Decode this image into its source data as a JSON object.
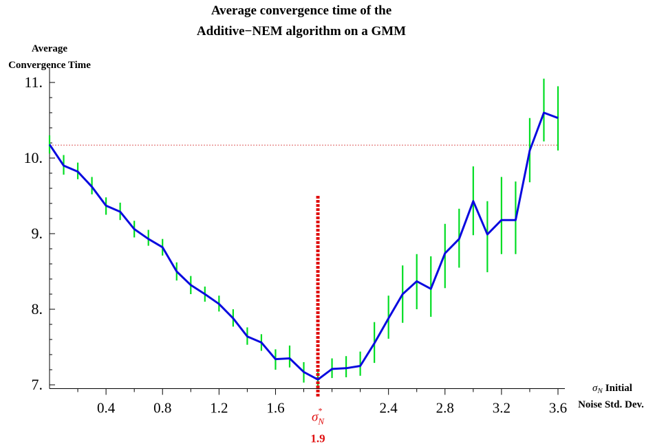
{
  "chart_data": {
    "type": "line",
    "title_line1": "Average convergence time of the",
    "title_line2": "Additive−NEM algorithm on a GMM",
    "ylabel_line1": "Average",
    "ylabel_line2": "Convergence Time",
    "xlabel_symbol": "σ",
    "xlabel_subscript": "N",
    "xlabel_line1": "Initial",
    "xlabel_line2": "Noise Std. Dev.",
    "xlim": [
      0.0,
      3.6
    ],
    "ylim": [
      6.95,
      11.2
    ],
    "x_ticks": [
      0.4,
      0.8,
      1.2,
      1.6,
      2.4,
      2.8,
      3.2,
      3.6
    ],
    "x_tick_labels": [
      "0.4",
      "0.8",
      "1.2",
      "1.6",
      "2.4",
      "2.8",
      "3.2",
      "3.6"
    ],
    "y_ticks": [
      7,
      8,
      9,
      10,
      11
    ],
    "y_tick_labels": [
      "7.",
      "8.",
      "9.",
      "10.",
      "11."
    ],
    "reference_line_y": 10.17,
    "optimum": {
      "x": 1.9,
      "y_top": 9.5,
      "symbol": "σ",
      "subscript": "N",
      "superscript": "*",
      "value_label": "1.9"
    },
    "colors": {
      "line": "#0a0adf",
      "error_bars": "#00dd22",
      "optimum_marker": "#e01010",
      "reference_line": "#e89090",
      "axis": "#000000"
    },
    "series": [
      {
        "x": [
          0.0,
          0.1,
          0.2,
          0.3,
          0.4,
          0.5,
          0.6,
          0.7,
          0.8,
          0.9,
          1.0,
          1.1,
          1.2,
          1.3,
          1.4,
          1.5,
          1.6,
          1.7,
          1.8,
          1.9,
          2.0,
          2.1,
          2.2,
          2.3,
          2.4,
          2.5,
          2.6,
          2.7,
          2.8,
          2.9,
          3.0,
          3.1,
          3.2,
          3.3,
          3.4,
          3.5,
          3.6
        ],
        "y": [
          10.18,
          9.9,
          9.82,
          9.62,
          9.37,
          9.29,
          9.06,
          8.93,
          8.82,
          8.5,
          8.32,
          8.2,
          8.07,
          7.88,
          7.64,
          7.56,
          7.34,
          7.35,
          7.17,
          7.07,
          7.21,
          7.22,
          7.25,
          7.55,
          7.88,
          8.2,
          8.37,
          8.27,
          8.74,
          8.93,
          9.43,
          8.99,
          9.18,
          9.18,
          10.1,
          10.6,
          10.53
        ],
        "err_low": [
          10.06,
          9.78,
          9.72,
          9.52,
          9.25,
          9.18,
          8.95,
          8.84,
          8.71,
          8.38,
          8.2,
          8.1,
          7.97,
          7.77,
          7.53,
          7.45,
          7.2,
          7.23,
          7.03,
          6.98,
          7.09,
          7.1,
          7.12,
          7.29,
          7.61,
          7.82,
          8.0,
          7.9,
          8.28,
          8.55,
          8.98,
          8.49,
          8.73,
          8.73,
          9.68,
          10.22,
          10.1
        ],
        "err_high": [
          10.3,
          10.04,
          9.94,
          9.75,
          9.48,
          9.41,
          9.17,
          9.05,
          8.93,
          8.62,
          8.44,
          8.3,
          8.18,
          8.0,
          7.76,
          7.67,
          7.47,
          7.52,
          7.3,
          7.17,
          7.35,
          7.38,
          7.44,
          7.83,
          8.18,
          8.58,
          8.73,
          8.7,
          9.13,
          9.33,
          9.89,
          9.43,
          9.75,
          9.69,
          10.53,
          11.05,
          10.95
        ]
      }
    ]
  }
}
